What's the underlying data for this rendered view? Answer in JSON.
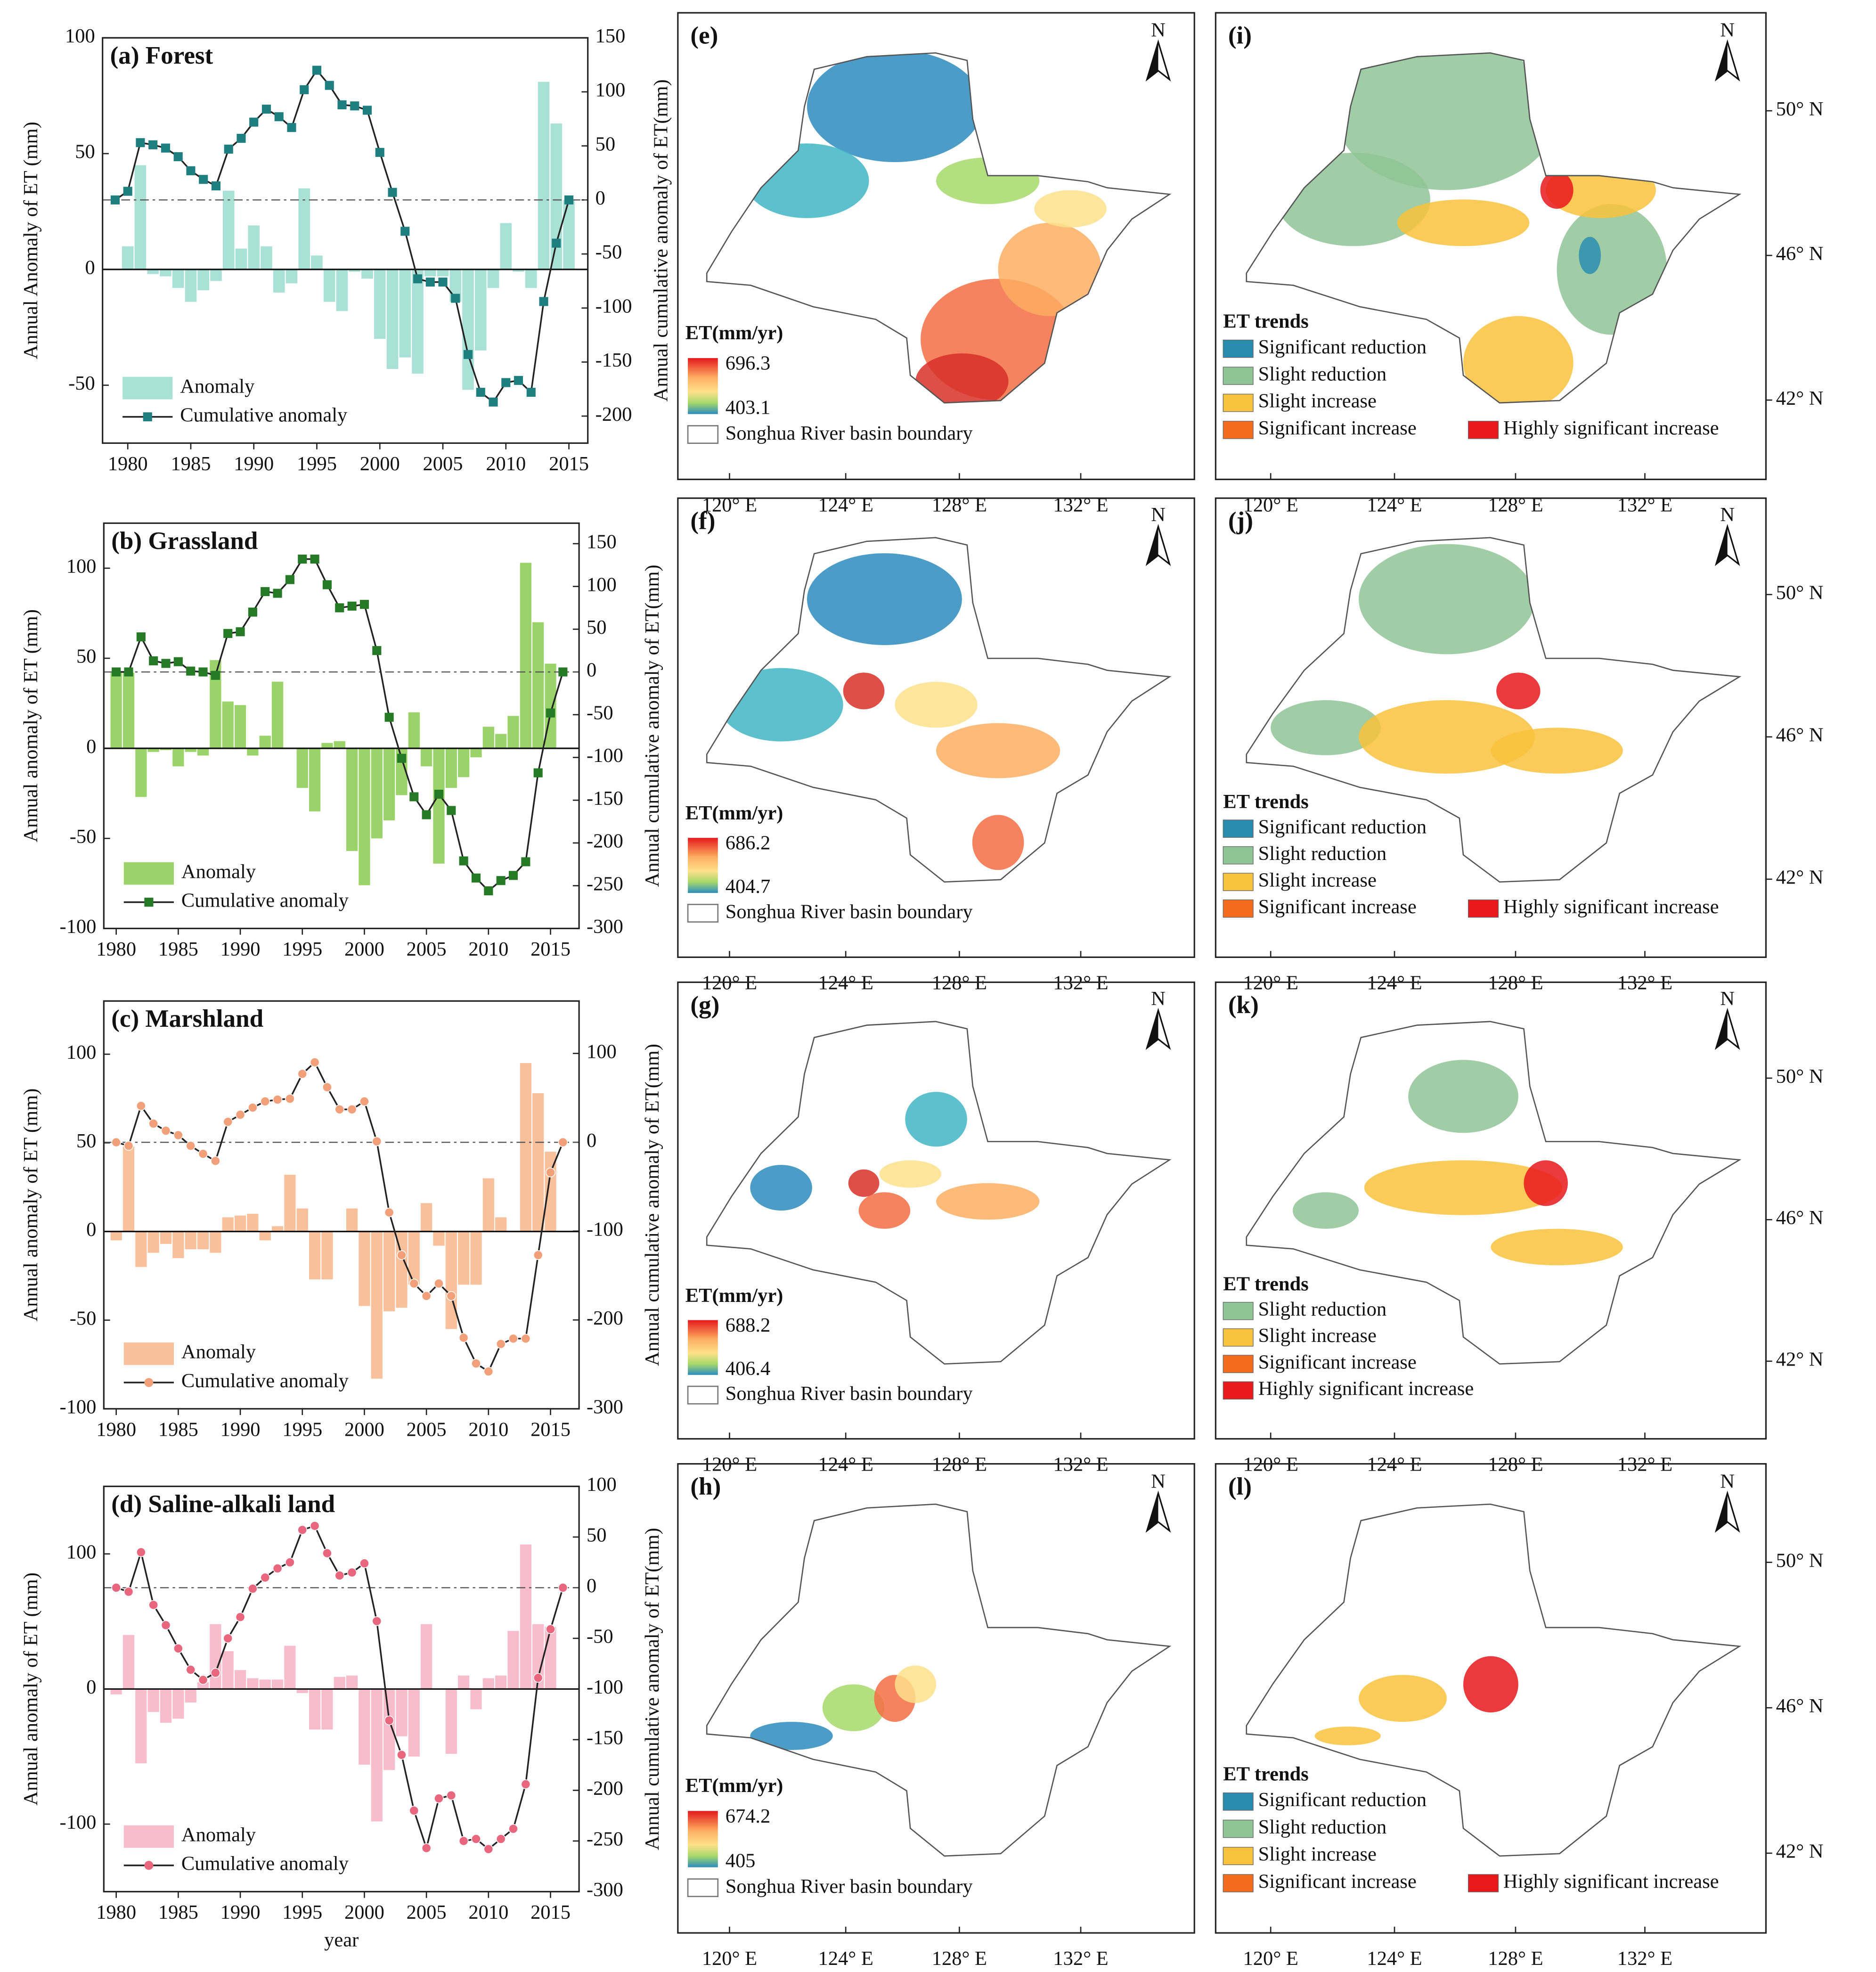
{
  "chart_data": [
    {
      "type": "combo",
      "title": "(a) Forest",
      "ylabel": "Annual Anomaly of ET (mm)",
      "y2label": "Annual cumulative anomaly of ET(mm)",
      "x": [
        1979,
        1980,
        1981,
        1982,
        1983,
        1984,
        1985,
        1986,
        1987,
        1988,
        1989,
        1990,
        1991,
        1992,
        1993,
        1994,
        1995,
        1996,
        1997,
        1998,
        1999,
        2000,
        2001,
        2002,
        2003,
        2004,
        2005,
        2006,
        2007,
        2008,
        2009,
        2010,
        2011,
        2012,
        2013,
        2014,
        2015
      ],
      "series": [
        {
          "name": "Anomaly",
          "kind": "bar",
          "color": "#a9e1d7",
          "values": [
            0,
            10,
            45,
            -2,
            -3,
            -8,
            -14,
            -9,
            -5,
            34,
            9,
            19,
            10,
            -10,
            -6,
            35,
            6,
            -14,
            -18,
            -1,
            -4,
            -30,
            -43,
            -38,
            -45,
            -3,
            -3,
            -14,
            -52,
            -35,
            -8,
            20,
            -1,
            -8,
            81,
            63,
            30
          ]
        },
        {
          "name": "Cumulative anomaly",
          "kind": "line",
          "axis": "y2",
          "color": "#1f7e80",
          "marker": "square",
          "values": [
            0,
            8,
            53,
            51,
            48,
            40,
            27,
            19,
            13,
            47,
            57,
            72,
            84,
            77,
            67,
            102,
            120,
            106,
            88,
            87,
            83,
            44,
            7,
            -29,
            -73,
            -76,
            -76,
            -91,
            -143,
            -178,
            -187,
            -169,
            -167,
            -178,
            -94,
            -40,
            0
          ]
        }
      ],
      "xlim": [
        1978,
        2016.5
      ],
      "xticks": [
        1980,
        1985,
        1990,
        1995,
        2000,
        2005,
        2010,
        2015
      ],
      "ylim": [
        -75,
        100
      ],
      "yticks": [
        -50,
        0,
        50,
        100
      ],
      "y2lim": [
        -225,
        150
      ],
      "y2ticks": [
        -200,
        -150,
        -100,
        -50,
        0,
        50,
        100,
        150
      ],
      "hline_y2": 0,
      "legend": "lower left"
    },
    {
      "type": "combo",
      "title": "(b) Grassland",
      "ylabel": "Annual anomaly of ET (mm)",
      "y2label": "Annual cumulative anomaly of ET(mm)",
      "x": [
        1980,
        1981,
        1982,
        1983,
        1984,
        1985,
        1986,
        1987,
        1988,
        1989,
        1990,
        1991,
        1992,
        1993,
        1994,
        1995,
        1996,
        1997,
        1998,
        1999,
        2000,
        2001,
        2002,
        2003,
        2004,
        2005,
        2006,
        2007,
        2008,
        2009,
        2010,
        2011,
        2012,
        2013,
        2014,
        2015,
        2016
      ],
      "series": [
        {
          "name": "Anomaly",
          "kind": "bar",
          "color": "#9ad36a",
          "values": [
            42,
            42,
            -27,
            -2,
            -1,
            -10,
            -2,
            -4,
            49,
            26,
            24,
            -4,
            7,
            37,
            0,
            -22,
            -35,
            3,
            4,
            -57,
            -76,
            -50,
            -40,
            -26,
            20,
            -10,
            -64,
            -22,
            -16,
            -5,
            12,
            8,
            18,
            103,
            70,
            47,
            0
          ]
        },
        {
          "name": "Cumulative anomaly",
          "kind": "line",
          "axis": "y2",
          "color": "#267a26",
          "marker": "square",
          "values": [
            0,
            0,
            41,
            13,
            10,
            12,
            1,
            0,
            -4,
            45,
            47,
            70,
            94,
            92,
            108,
            132,
            132,
            102,
            75,
            77,
            79,
            25,
            -53,
            -101,
            -146,
            -167,
            -143,
            -162,
            -221,
            -241,
            -256,
            -244,
            -238,
            -222,
            -118,
            -48,
            0
          ]
        }
      ],
      "xlim": [
        1979,
        2017.3
      ],
      "xticks": [
        1980,
        1985,
        1990,
        1995,
        2000,
        2005,
        2010,
        2015
      ],
      "ylim": [
        -100,
        125
      ],
      "yticks": [
        -100,
        -50,
        0,
        50,
        100
      ],
      "y2lim": [
        -300,
        174
      ],
      "y2ticks": [
        -300,
        -250,
        -200,
        -150,
        -100,
        -50,
        0,
        50,
        100,
        150
      ],
      "hline_y2": 0,
      "legend": "lower left"
    },
    {
      "type": "combo",
      "title": "(c) Marshland",
      "ylabel": "Annual anomaly of ET (mm)",
      "y2label": "Annual cumulative anomaly of ET(mm)",
      "x": [
        1980,
        1981,
        1982,
        1983,
        1984,
        1985,
        1986,
        1987,
        1988,
        1989,
        1990,
        1991,
        1992,
        1993,
        1994,
        1995,
        1996,
        1997,
        1998,
        1999,
        2000,
        2001,
        2002,
        2003,
        2004,
        2005,
        2006,
        2007,
        2008,
        2009,
        2010,
        2011,
        2012,
        2013,
        2014,
        2015,
        2016
      ],
      "series": [
        {
          "name": "Anomaly",
          "kind": "bar",
          "color": "#f8c19c",
          "values": [
            -5,
            48,
            -20,
            -12,
            -7,
            -15,
            -10,
            -10,
            -12,
            8,
            9,
            10,
            -5,
            3,
            32,
            13,
            -27,
            -27,
            0,
            13,
            -42,
            -83,
            -45,
            -43,
            -30,
            16,
            -8,
            -55,
            -30,
            -30,
            30,
            8,
            0,
            95,
            78,
            45,
            0
          ]
        },
        {
          "name": "Cumulative anomaly",
          "kind": "line",
          "axis": "y2",
          "color": "#f2a07a",
          "marker": "circle",
          "values": [
            0,
            -4,
            41,
            21,
            13,
            8,
            -4,
            -13,
            -21,
            23,
            31,
            39,
            46,
            48,
            49,
            77,
            90,
            62,
            37,
            37,
            46,
            1,
            -79,
            -127,
            -159,
            -173,
            -159,
            -173,
            -220,
            -249,
            -258,
            -227,
            -221,
            -221,
            -127,
            -34,
            0
          ]
        }
      ],
      "xlim": [
        1979,
        2017.3
      ],
      "xticks": [
        1980,
        1985,
        1990,
        1995,
        2000,
        2005,
        2010,
        2015
      ],
      "ylim": [
        -100,
        130
      ],
      "yticks": [
        -100,
        -50,
        0,
        50,
        100
      ],
      "y2lim": [
        -300,
        159
      ],
      "y2ticks": [
        -300,
        -200,
        -100,
        0,
        100
      ],
      "hline_y2": 0,
      "legend": "lower left"
    },
    {
      "type": "combo",
      "title": "(d) Saline-alkali land",
      "ylabel": "Annual anomaly of ET (mm)",
      "y2label": "Annual cumulative anomaly of ET(mm)",
      "xlabel": "year",
      "x": [
        1980,
        1981,
        1982,
        1983,
        1984,
        1985,
        1986,
        1987,
        1988,
        1989,
        1990,
        1991,
        1992,
        1993,
        1994,
        1995,
        1996,
        1997,
        1998,
        1999,
        2000,
        2001,
        2002,
        2003,
        2004,
        2005,
        2006,
        2007,
        2008,
        2009,
        2010,
        2011,
        2012,
        2013,
        2014,
        2015,
        2016
      ],
      "series": [
        {
          "name": "Anomaly",
          "kind": "bar",
          "color": "#f7bdcc",
          "values": [
            -4,
            40,
            -55,
            -17,
            -25,
            -22,
            -10,
            5,
            48,
            28,
            14,
            8,
            7,
            7,
            32,
            -3,
            -30,
            -30,
            9,
            10,
            -56,
            -98,
            -60,
            -35,
            -50,
            48,
            0,
            -48,
            10,
            -15,
            8,
            10,
            43,
            107,
            48,
            46,
            0
          ]
        },
        {
          "name": "Cumulative anomaly",
          "kind": "line",
          "axis": "y2",
          "color": "#e8677e",
          "marker": "circle",
          "values": [
            0,
            -4,
            35,
            -17,
            -37,
            -60,
            -81,
            -91,
            -84,
            -50,
            -29,
            -1,
            10,
            19,
            25,
            57,
            61,
            34,
            12,
            15,
            24,
            -33,
            -131,
            -165,
            -220,
            -257,
            -208,
            -205,
            -250,
            -248,
            -258,
            -248,
            -238,
            -194,
            -89,
            -41,
            0
          ]
        }
      ],
      "xlim": [
        1979,
        2017.3
      ],
      "xticks": [
        1980,
        1985,
        1990,
        1995,
        2000,
        2005,
        2010,
        2015
      ],
      "ylim": [
        -150,
        150
      ],
      "yticks": [
        -100,
        0,
        100
      ],
      "y2lim": [
        -300,
        100
      ],
      "y2ticks": [
        -300,
        -250,
        -200,
        -150,
        -100,
        -50,
        0,
        50,
        100
      ],
      "hline_y2": 0,
      "legend": "lower left"
    }
  ],
  "maps": [
    {
      "label": "(e)",
      "legend_title": "ET(mm/yr)",
      "max": "696.3",
      "min": "403.1",
      "boundary": "Songhua River basin boundary"
    },
    {
      "label": "(f)",
      "legend_title": "ET(mm/yr)",
      "max": "686.2",
      "min": "404.7",
      "boundary": "Songhua River basin boundary"
    },
    {
      "label": "(g)",
      "legend_title": "ET(mm/yr)",
      "max": "688.2",
      "min": "406.4",
      "boundary": "Songhua River basin boundary"
    },
    {
      "label": "(h)",
      "legend_title": "ET(mm/yr)",
      "max": "674.2",
      "min": "405",
      "boundary": "Songhua River basin boundary"
    },
    {
      "label": "(i)",
      "legend_title": "ET trends",
      "classes": [
        {
          "name": "Significant reduction",
          "color": "#2a8db0"
        },
        {
          "name": "Slight reduction",
          "color": "#8fc497"
        },
        {
          "name": "Slight increase",
          "color": "#f9c23c"
        },
        {
          "name": "Significant increase",
          "color": "#f36b1c"
        },
        {
          "name": "Highly significant increase",
          "color": "#e8181b"
        }
      ]
    },
    {
      "label": "(j)",
      "legend_title": "ET trends",
      "classes": [
        {
          "name": "Significant reduction",
          "color": "#2a8db0"
        },
        {
          "name": "Slight reduction",
          "color": "#8fc497"
        },
        {
          "name": "Slight increase",
          "color": "#f9c23c"
        },
        {
          "name": "Significant increase",
          "color": "#f36b1c"
        },
        {
          "name": "Highly significant increase",
          "color": "#e8181b"
        }
      ]
    },
    {
      "label": "(k)",
      "legend_title": "ET trends",
      "classes": [
        {
          "name": "Slight reduction",
          "color": "#8fc497"
        },
        {
          "name": "Slight increase",
          "color": "#f9c23c"
        },
        {
          "name": "Significant increase",
          "color": "#f36b1c"
        },
        {
          "name": "Highly significant increase",
          "color": "#e8181b"
        }
      ]
    },
    {
      "label": "(l)",
      "legend_title": "ET trends",
      "classes": [
        {
          "name": "Significant reduction",
          "color": "#2a8db0"
        },
        {
          "name": "Slight reduction",
          "color": "#8fc497"
        },
        {
          "name": "Slight increase",
          "color": "#f9c23c"
        },
        {
          "name": "Significant increase",
          "color": "#f36b1c"
        },
        {
          "name": "Highly significant increase",
          "color": "#e8181b"
        }
      ]
    }
  ],
  "north": "N",
  "lon_ticks": [
    "120° E",
    "124° E",
    "128° E",
    "132° E"
  ],
  "lat_ticks": [
    "50° N",
    "46° N",
    "42° N"
  ]
}
